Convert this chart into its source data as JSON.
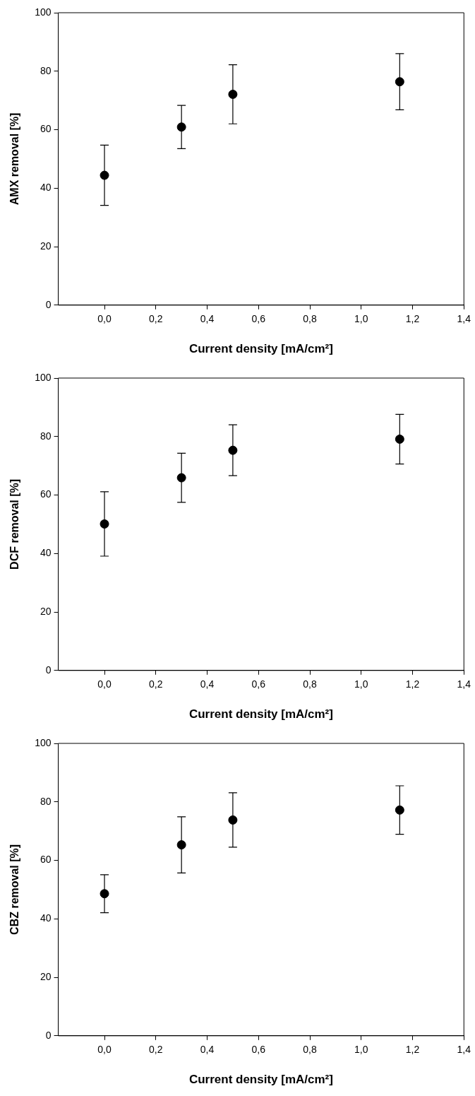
{
  "chart_data": [
    {
      "type": "scatter",
      "xlabel": "Current density [mA/cm²]",
      "ylabel": "AMX removal [%]",
      "x": [
        0,
        0.3,
        0.5,
        1.15
      ],
      "series": [
        {
          "color": "#000000",
          "values": [
            44.4,
            60.9,
            72.1,
            76.4
          ],
          "errors": [
            10.3,
            7.4,
            10.1,
            9.6
          ]
        }
      ],
      "xlim": [
        -0.18,
        1.4
      ],
      "xticks": [
        {
          "value": 0,
          "label": "0,0"
        },
        {
          "value": 0.2,
          "label": "0,2"
        },
        {
          "value": 0.4,
          "label": "0,4"
        },
        {
          "value": 0.6,
          "label": "0,6"
        },
        {
          "value": 0.8,
          "label": "0,8"
        },
        {
          "value": 1.0,
          "label": "1,0"
        },
        {
          "value": 1.2,
          "label": "1,2"
        },
        {
          "value": 1.4,
          "label": "1,4"
        }
      ],
      "ylim": [
        0,
        100
      ],
      "yticks": [
        0,
        20,
        40,
        60,
        80,
        100
      ],
      "marker": "circle"
    },
    {
      "type": "scatter",
      "xlabel": "Current density [mA/cm²]",
      "ylabel": "DCF removal [%]",
      "x": [
        0,
        0.3,
        0.5,
        1.15
      ],
      "series": [
        {
          "color": "#000000",
          "values": [
            50.1,
            65.9,
            75.3,
            79.1
          ],
          "errors": [
            11.0,
            8.4,
            8.7,
            8.5
          ]
        }
      ],
      "xlim": [
        -0.18,
        1.4
      ],
      "xticks": [
        {
          "value": 0,
          "label": "0,0"
        },
        {
          "value": 0.2,
          "label": "0,2"
        },
        {
          "value": 0.4,
          "label": "0,4"
        },
        {
          "value": 0.6,
          "label": "0,6"
        },
        {
          "value": 0.8,
          "label": "0,8"
        },
        {
          "value": 1.0,
          "label": "1,0"
        },
        {
          "value": 1.2,
          "label": "1,2"
        },
        {
          "value": 1.4,
          "label": "1,4"
        }
      ],
      "ylim": [
        0,
        100
      ],
      "yticks": [
        0,
        20,
        40,
        60,
        80,
        100
      ],
      "marker": "circle"
    },
    {
      "type": "scatter",
      "xlabel": "Current density [mA/cm²]",
      "ylabel": "CBZ removal [%]",
      "x": [
        0,
        0.3,
        0.5,
        1.15
      ],
      "series": [
        {
          "color": "#000000",
          "values": [
            48.6,
            65.3,
            73.8,
            77.2
          ],
          "errors": [
            6.5,
            9.6,
            9.3,
            8.3
          ]
        }
      ],
      "xlim": [
        -0.18,
        1.4
      ],
      "xticks": [
        {
          "value": 0,
          "label": "0,0"
        },
        {
          "value": 0.2,
          "label": "0,2"
        },
        {
          "value": 0.4,
          "label": "0,4"
        },
        {
          "value": 0.6,
          "label": "0,6"
        },
        {
          "value": 0.8,
          "label": "0,8"
        },
        {
          "value": 1.0,
          "label": "1,0"
        },
        {
          "value": 1.2,
          "label": "1,2"
        },
        {
          "value": 1.4,
          "label": "1,4"
        }
      ],
      "ylim": [
        0,
        100
      ],
      "yticks": [
        0,
        20,
        40,
        60,
        80,
        100
      ],
      "marker": "circle"
    }
  ]
}
